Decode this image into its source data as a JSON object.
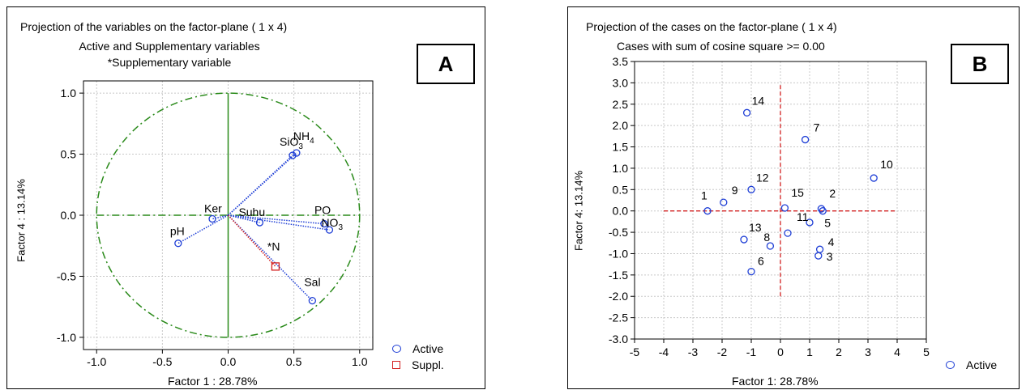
{
  "chart_data": [
    {
      "type": "scatter",
      "panel_label": "A",
      "title_lines": [
        "Projection of the variables on the factor-plane (  1 x   4)",
        "Active and Supplementary variables",
        "*Supplementary variable"
      ],
      "xlabel": "Factor 1 : 28.78%",
      "ylabel": "Factor 4 : 13.14%",
      "xlim": [
        -1.1,
        1.1
      ],
      "ylim": [
        -1.1,
        1.1
      ],
      "xticks": [
        "-1.0",
        "-0.5",
        "0.0",
        "0.5",
        "1.0"
      ],
      "yticks": [
        "-1.0",
        "-0.5",
        "0.0",
        "0.5",
        "1.0"
      ],
      "xtick_values": [
        -1.0,
        -0.5,
        0.0,
        0.5,
        1.0
      ],
      "ytick_values": [
        -1.0,
        -0.5,
        0.0,
        0.5,
        1.0
      ],
      "grid": true,
      "unit_circle": true,
      "legend_placement": "bottom-right",
      "series": [
        {
          "name": "Active",
          "marker": "circle",
          "color": "#1f3fd6",
          "points": [
            {
              "label": "SiO3",
              "x": 0.49,
              "y": 0.49
            },
            {
              "label": "NH4",
              "x": 0.52,
              "y": 0.51
            },
            {
              "label": "Ker",
              "x": -0.12,
              "y": -0.03
            },
            {
              "label": "Suhu",
              "x": 0.24,
              "y": -0.06
            },
            {
              "label": "PO",
              "x": 0.73,
              "y": -0.07
            },
            {
              "label": "NO3",
              "x": 0.77,
              "y": -0.12
            },
            {
              "label": "pH",
              "x": -0.38,
              "y": -0.23
            },
            {
              "label": "Sal",
              "x": 0.64,
              "y": -0.7
            }
          ]
        },
        {
          "name": "Suppl.",
          "marker": "square",
          "color": "#d42020",
          "points": [
            {
              "label": "*N",
              "x": 0.36,
              "y": -0.42
            }
          ]
        }
      ]
    },
    {
      "type": "scatter",
      "panel_label": "B",
      "title_lines": [
        "Projection of the cases on the factor-plane (  1 x   4)",
        "Cases with sum of cosine square >=  0.00"
      ],
      "xlabel": "Factor 1: 28.78%",
      "ylabel": "Factor 4: 13.14%",
      "xlim": [
        -5,
        5
      ],
      "ylim": [
        -3.0,
        3.5
      ],
      "xticks": [
        "-5",
        "-4",
        "-3",
        "-2",
        "-1",
        "0",
        "1",
        "2",
        "3",
        "4",
        "5"
      ],
      "yticks": [
        "-3.0",
        "-2.5",
        "-2.0",
        "-1.5",
        "-1.0",
        "-0.5",
        "0.0",
        "0.5",
        "1.0",
        "1.5",
        "2.0",
        "2.5",
        "3.0",
        "3.5"
      ],
      "xtick_values": [
        -5,
        -4,
        -3,
        -2,
        -1,
        0,
        1,
        2,
        3,
        4,
        5
      ],
      "ytick_values": [
        -3.0,
        -2.5,
        -2.0,
        -1.5,
        -1.0,
        -0.5,
        0.0,
        0.5,
        1.0,
        1.5,
        2.0,
        2.5,
        3.0,
        3.5
      ],
      "grid": true,
      "legend_placement": "bottom-right",
      "series": [
        {
          "name": "Active",
          "marker": "circle",
          "color": "#1f3fd6",
          "points": [
            {
              "label": "1",
              "x": -2.5,
              "y": 0.0
            },
            {
              "label": "2",
              "x": 1.4,
              "y": 0.05
            },
            {
              "label": "3",
              "x": 1.3,
              "y": -1.05
            },
            {
              "label": "4",
              "x": 1.35,
              "y": -0.9
            },
            {
              "label": "5",
              "x": 1.45,
              "y": 0.0
            },
            {
              "label": "6",
              "x": -1.0,
              "y": -1.42
            },
            {
              "label": "7",
              "x": 0.85,
              "y": 1.67
            },
            {
              "label": "8",
              "x": -0.35,
              "y": -0.82
            },
            {
              "label": "9",
              "x": -1.95,
              "y": 0.2
            },
            {
              "label": "10",
              "x": 3.2,
              "y": 0.77
            },
            {
              "label": "11",
              "x": 1.0,
              "y": -0.27
            },
            {
              "label": "12",
              "x": -1.0,
              "y": 0.5
            },
            {
              "label": "13",
              "x": -1.25,
              "y": -0.67
            },
            {
              "label": "14",
              "x": -1.15,
              "y": 2.3
            },
            {
              "label": "15",
              "x": 0.15,
              "y": 0.07
            },
            {
              "label": "",
              "x": 0.25,
              "y": -0.52
            }
          ]
        }
      ],
      "reference_lines": [
        {
          "orientation": "horizontal",
          "value": 0.0,
          "from": -4,
          "to": 4
        },
        {
          "orientation": "vertical",
          "value": 0.0,
          "from": -2.0,
          "to": 3.0
        }
      ]
    }
  ]
}
